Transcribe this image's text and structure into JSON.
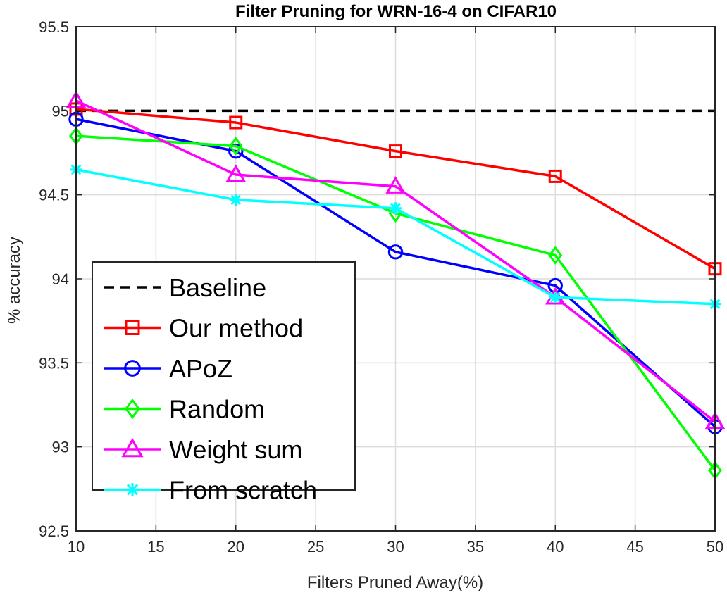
{
  "chart_data": {
    "type": "line",
    "title": "Filter Pruning for WRN-16-4 on CIFAR10",
    "xlabel": "Filters Pruned Away(%)",
    "ylabel": "% accuracy",
    "xlim": [
      10,
      50
    ],
    "ylim": [
      92.5,
      95.5
    ],
    "xticks": [
      10,
      15,
      20,
      25,
      30,
      35,
      40,
      45,
      50
    ],
    "xtick_labels": [
      "10",
      "15",
      "20",
      "25",
      "30",
      "35",
      "40",
      "45",
      "50"
    ],
    "yticks": [
      92.5,
      93,
      93.5,
      94,
      94.5,
      95,
      95.5
    ],
    "ytick_labels": [
      "92.5",
      "93",
      "93.5",
      "94",
      "94.5",
      "95",
      "95.5"
    ],
    "grid": true,
    "legend_position": "bottom-left",
    "x": [
      10,
      20,
      30,
      40,
      50
    ],
    "series": [
      {
        "name": "Baseline",
        "color": "#000000",
        "marker": "none",
        "dash": "dashed",
        "values": [
          95.0,
          95.0,
          95.0,
          95.0,
          95.0
        ]
      },
      {
        "name": "Our method",
        "color": "#ff0000",
        "marker": "square",
        "dash": "solid",
        "values": [
          95.01,
          94.93,
          94.76,
          94.61,
          94.06
        ]
      },
      {
        "name": "APoZ",
        "color": "#0000ff",
        "marker": "circle",
        "dash": "solid",
        "values": [
          94.95,
          94.76,
          94.16,
          93.96,
          93.12
        ]
      },
      {
        "name": "Random",
        "color": "#00ff00",
        "marker": "diamond",
        "dash": "solid",
        "values": [
          94.85,
          94.79,
          94.39,
          94.14,
          92.86
        ]
      },
      {
        "name": "Weight sum",
        "color": "#ff00ff",
        "marker": "triangle",
        "dash": "solid",
        "values": [
          95.06,
          94.62,
          94.55,
          93.89,
          93.15
        ]
      },
      {
        "name": "From scratch",
        "color": "#00ffff",
        "marker": "asterisk",
        "dash": "solid",
        "values": [
          94.65,
          94.47,
          94.42,
          93.89,
          93.85
        ]
      }
    ]
  }
}
